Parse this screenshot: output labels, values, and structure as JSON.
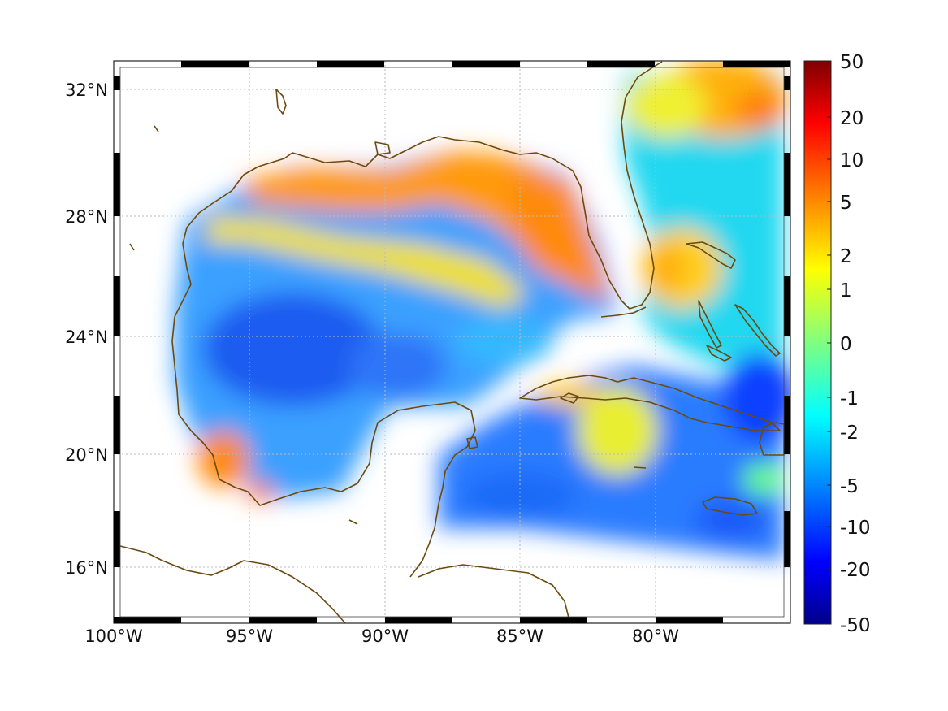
{
  "map": {
    "lat_labels": [
      "32°N",
      "28°N",
      "24°N",
      "20°N",
      "16°N"
    ],
    "lon_labels": [
      "100°W",
      "95°W",
      "90°W",
      "85°W",
      "80°W"
    ],
    "extent": {
      "lon_min": -100,
      "lon_max": -75,
      "lat_min": 14.2,
      "lat_max": 33
    },
    "grid": true,
    "coast_color": "#6b4a0f",
    "projection": "equirectangular"
  },
  "colorbar": {
    "tick_labels": [
      "50",
      "20",
      "10",
      "5",
      "2",
      "1",
      "0",
      "-1",
      "-2",
      "-5",
      "-10",
      "-20",
      "-50"
    ],
    "top_color": "#800000",
    "bottom_color": "#00008a",
    "colormap": "jet"
  }
}
